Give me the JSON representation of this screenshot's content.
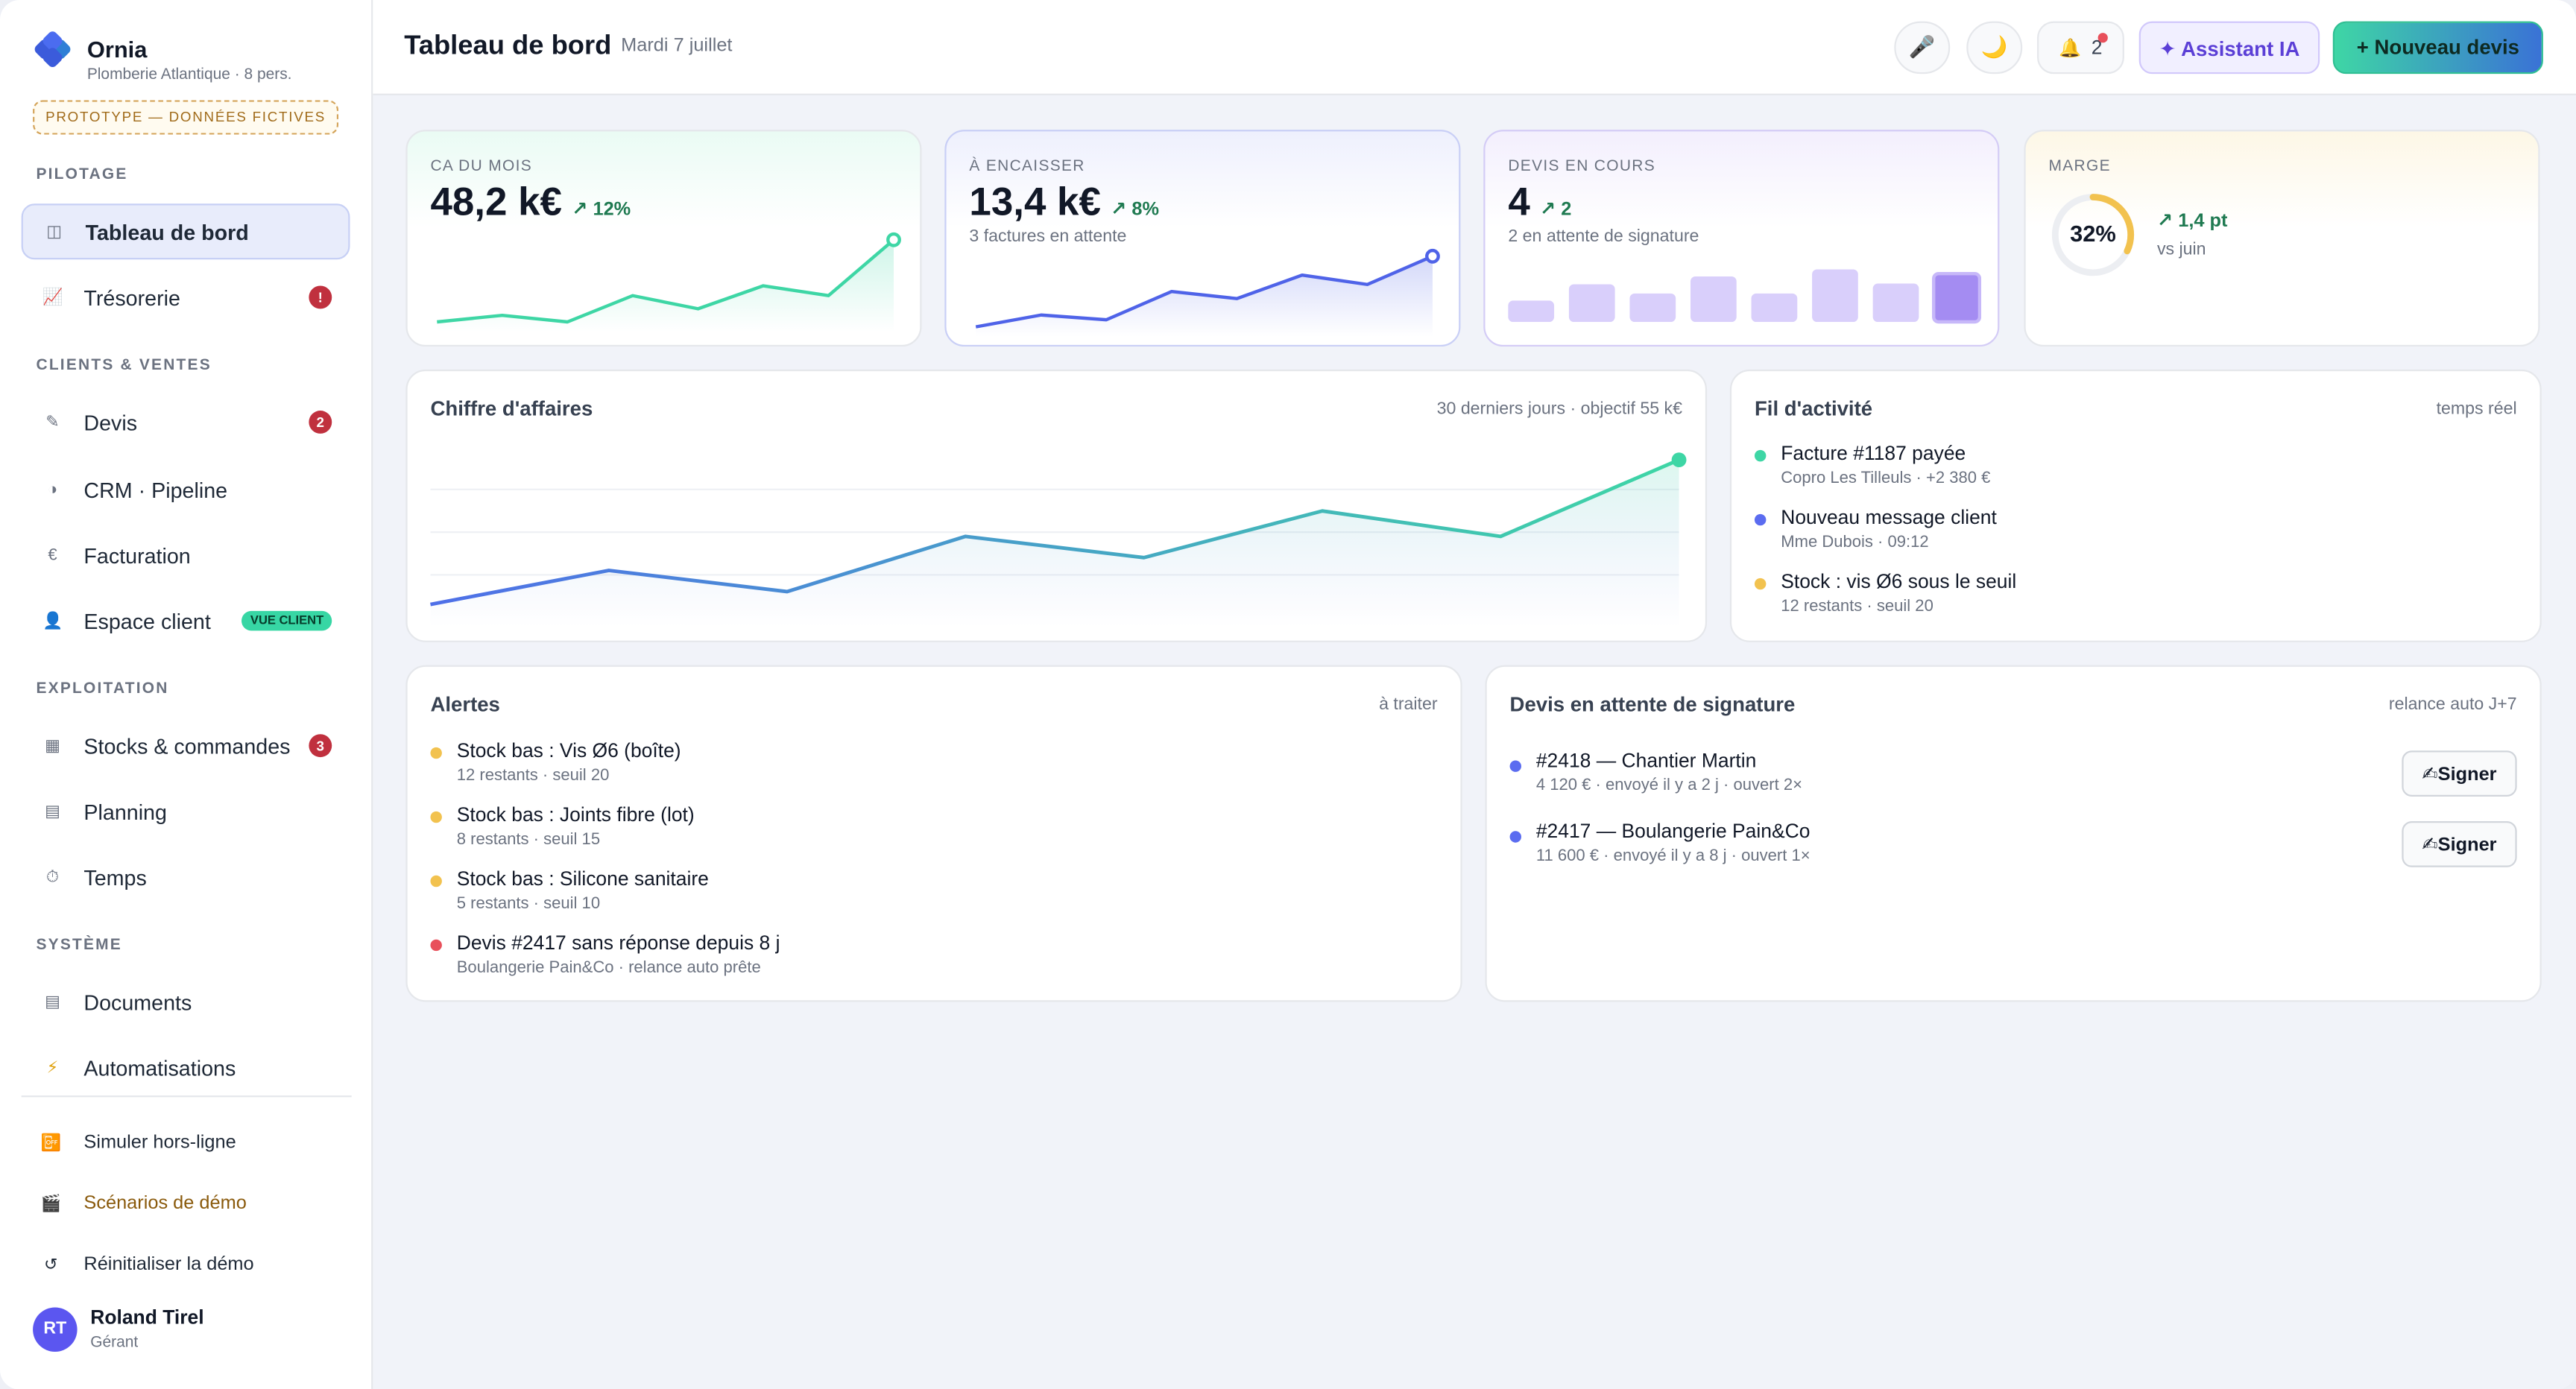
{
  "brand": {
    "name": "Ornia",
    "subtitle": "Plomberie Atlantique · 8 pers.",
    "prototype_badge": "PROTOTYPE — DONNÉES FICTIVES"
  },
  "sidebar": {
    "sections": [
      "PILOTAGE",
      "CLIENTS & VENTES",
      "EXPLOITATION",
      "SYSTÈME"
    ],
    "items": [
      {
        "label": "Tableau de bord",
        "icon": "◫"
      },
      {
        "label": "Trésorerie",
        "icon": "📈",
        "badge": "!"
      },
      {
        "label": "Devis",
        "icon": "✎",
        "badge": "2"
      },
      {
        "label": "CRM · Pipeline",
        "icon": "◑"
      },
      {
        "label": "Facturation",
        "icon": "€"
      },
      {
        "label": "Espace client",
        "icon": "👤",
        "tag": "VUE CLIENT"
      },
      {
        "label": "Stocks & commandes",
        "icon": "▦",
        "badge": "3"
      },
      {
        "label": "Planning",
        "icon": "▤"
      },
      {
        "label": "Temps",
        "icon": "⏱"
      },
      {
        "label": "Documents",
        "icon": "▤"
      },
      {
        "label": "Automatisations",
        "icon": "⚡"
      }
    ],
    "links": [
      {
        "label": "Simuler hors-ligne",
        "icon": "📴"
      },
      {
        "label": "Scénarios de démo",
        "icon": "🎬"
      },
      {
        "label": "Réinitialiser la démo",
        "icon": "↺"
      }
    ],
    "user": {
      "initials": "RT",
      "name": "Roland Tirel",
      "role": "Gérant"
    }
  },
  "header": {
    "title": "Tableau de bord",
    "date": "Mardi 7 juillet",
    "mic_icon": "🎤",
    "theme_icon": "🌙",
    "bell_icon": "🔔",
    "notif_count": "2",
    "ai_label": "✦ Assistant IA",
    "new_label": "+ Nouveau devis"
  },
  "kpis": [
    {
      "label": "CA DU MOIS",
      "value": "48,2 k€",
      "delta": "↗ 12%",
      "color": "#3ed6a5",
      "trend": [
        3,
        3.4,
        3,
        4.6,
        3.8,
        5.2,
        4.6,
        8
      ]
    },
    {
      "label": "À ENCAISSER",
      "value": "13,4 k€",
      "delta": "↗ 8%",
      "sub": "3 factures en attente",
      "color": "#4f63e8",
      "trend": [
        1,
        2,
        1.6,
        4,
        3.4,
        5.4,
        4.6,
        7
      ]
    },
    {
      "label": "DEVIS EN COURS",
      "value": "4",
      "delta": "↗ 2",
      "sub": "2 en attente de signature",
      "color": "#b9a8f5",
      "bars": [
        3,
        5.3,
        4,
        6.4,
        4,
        7.4,
        5.4,
        6.8
      ]
    },
    {
      "label": "MARGE",
      "value": "32%",
      "delta": "↗ 1,4 pt",
      "sub": "vs juin",
      "color": "#f2c24f",
      "ratio": 0.32
    }
  ],
  "revenue_chart": {
    "title": "Chiffre d'affaires",
    "meta": "30 derniers jours · objectif 55 k€",
    "values": [
      30,
      34,
      31.5,
      38,
      35.5,
      41,
      38,
      47
    ]
  },
  "activity": {
    "title": "Fil d'activité",
    "meta": "temps réel",
    "items": [
      {
        "title": "Facture #1187 payée",
        "sub": "Copro Les Tilleuls · +2 380 €",
        "color": "#3ed6a5"
      },
      {
        "title": "Nouveau message client",
        "sub": "Mme Dubois · 09:12",
        "color": "#5b6cf0"
      },
      {
        "title": "Stock : vis Ø6 sous le seuil",
        "sub": "12 restants · seuil 20",
        "color": "#f2c24f"
      }
    ]
  },
  "alerts": {
    "title": "Alertes",
    "meta": "à traiter",
    "items": [
      {
        "title": "Stock bas : Vis Ø6 (boîte)",
        "sub": "12 restants · seuil 20",
        "color": "#f2c24f"
      },
      {
        "title": "Stock bas : Joints fibre (lot)",
        "sub": "8 restants · seuil 15",
        "color": "#f2c24f"
      },
      {
        "title": "Stock bas : Silicone sanitaire",
        "sub": "5 restants · seuil 10",
        "color": "#f2c24f"
      },
      {
        "title": "Devis #2417 sans réponse depuis 8 j",
        "sub": "Boulangerie Pain&Co · relance auto prête",
        "color": "#e8505b"
      }
    ]
  },
  "signatures": {
    "title": "Devis en attente de signature",
    "meta": "relance auto J+7",
    "items": [
      {
        "title": "#2418 — Chantier Martin",
        "sub": "4 120 € · envoyé il y a 2 j · ouvert 2×",
        "button": "✍Signer"
      },
      {
        "title": "#2417 — Boulangerie Pain&Co",
        "sub": "11 600 € · envoyé il y a 8 j · ouvert 1×",
        "button": "✍Signer"
      }
    ]
  }
}
